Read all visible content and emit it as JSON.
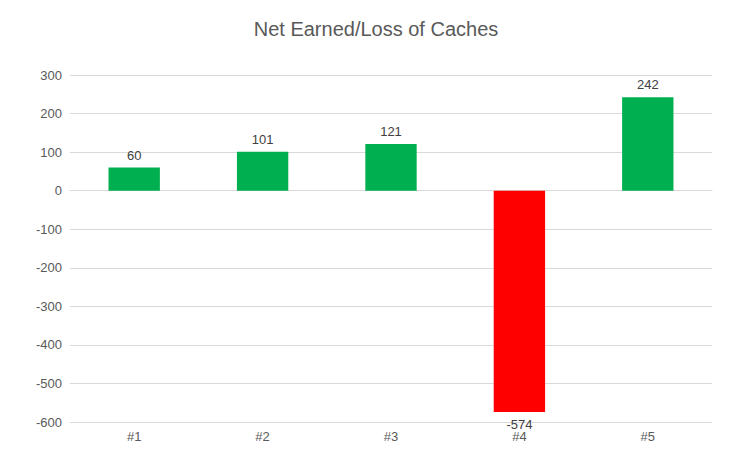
{
  "chart_data": {
    "type": "bar",
    "title": "Net Earned/Loss of Caches",
    "categories": [
      "#1",
      "#2",
      "#3",
      "#4",
      "#5"
    ],
    "values": [
      60,
      101,
      121,
      -574,
      242
    ],
    "colors": [
      "#00b050",
      "#00b050",
      "#00b050",
      "#ff0000",
      "#00b050"
    ],
    "ylim": [
      -600,
      300
    ],
    "yticks": [
      -600,
      -500,
      -400,
      -300,
      -200,
      -100,
      0,
      100,
      200,
      300
    ],
    "grid": true,
    "data_labels": true
  }
}
